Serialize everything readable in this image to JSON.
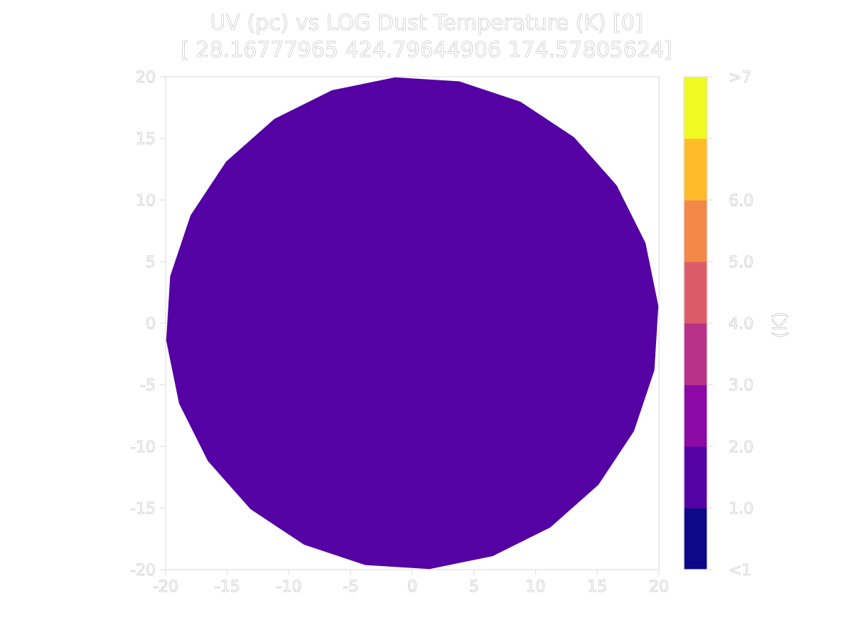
{
  "chart_data": {
    "type": "heatmap",
    "title": "UV (pc) vs LOG Dust Temperature (K) [0]",
    "subtitle": "[ 28.16777965 424.79644906 174.57805624]",
    "xlabel": "",
    "ylabel": "",
    "xlim": [
      -20,
      20
    ],
    "ylim": [
      -20,
      20
    ],
    "x_ticks": [
      "-20",
      "-15",
      "-10",
      "-5",
      "0",
      "5",
      "10",
      "15",
      "20"
    ],
    "y_ticks": [
      "20",
      "15",
      "10",
      "5",
      "0",
      "-5",
      "-10",
      "-15",
      "-20"
    ],
    "grid": false,
    "region": {
      "shape": "circle",
      "center": [
        0,
        0
      ],
      "radius": 20,
      "value_bin": "1.0-2.0",
      "color": "#5402a3"
    },
    "colorbar": {
      "label": "(K)",
      "bins": [
        {
          "label": "<1",
          "color": "#0d0887"
        },
        {
          "label": "1.0",
          "color": "#5402a3"
        },
        {
          "label": "2.0",
          "color": "#8b0aa5"
        },
        {
          "label": "3.0",
          "color": "#b93289"
        },
        {
          "label": "4.0",
          "color": "#db5c68"
        },
        {
          "label": "5.0",
          "color": "#f48849"
        },
        {
          "label": "6.0",
          "color": "#febc2a"
        },
        {
          "label": ">7",
          "color": "#f0f921"
        }
      ]
    }
  }
}
